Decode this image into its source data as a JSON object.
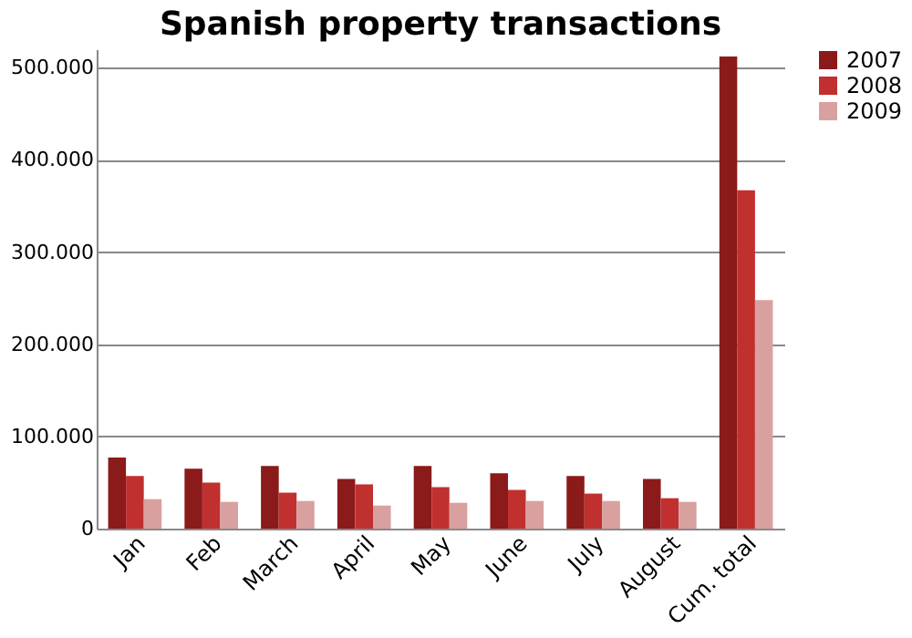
{
  "chart_data": {
    "type": "bar",
    "title": "Spanish property transactions",
    "categories": [
      "Jan",
      "Feb",
      "March",
      "April",
      "May",
      "June",
      "July",
      "August",
      "Cum. total"
    ],
    "series": [
      {
        "name": "2007",
        "color": "#8b1a1a",
        "values": [
          77000,
          65000,
          68000,
          54000,
          68000,
          60000,
          57000,
          54000,
          512000
        ]
      },
      {
        "name": "2008",
        "color": "#c0302e",
        "values": [
          57000,
          50000,
          39000,
          48000,
          45000,
          42000,
          38000,
          33000,
          367000
        ]
      },
      {
        "name": "2009",
        "color": "#d9a0a0",
        "values": [
          32000,
          29000,
          30000,
          25000,
          28000,
          30000,
          30000,
          29000,
          248000
        ]
      }
    ],
    "ylim": [
      0,
      520000
    ],
    "yticks": [
      0,
      {
        "value": 100000,
        "label": "100.000"
      },
      {
        "value": 200000,
        "label": "200.000"
      },
      {
        "value": 300000,
        "label": "300.000"
      },
      {
        "value": 400000,
        "label": "400.000"
      },
      {
        "value": 500000,
        "label": "500.000"
      }
    ],
    "grid": "y",
    "legend": "right"
  }
}
